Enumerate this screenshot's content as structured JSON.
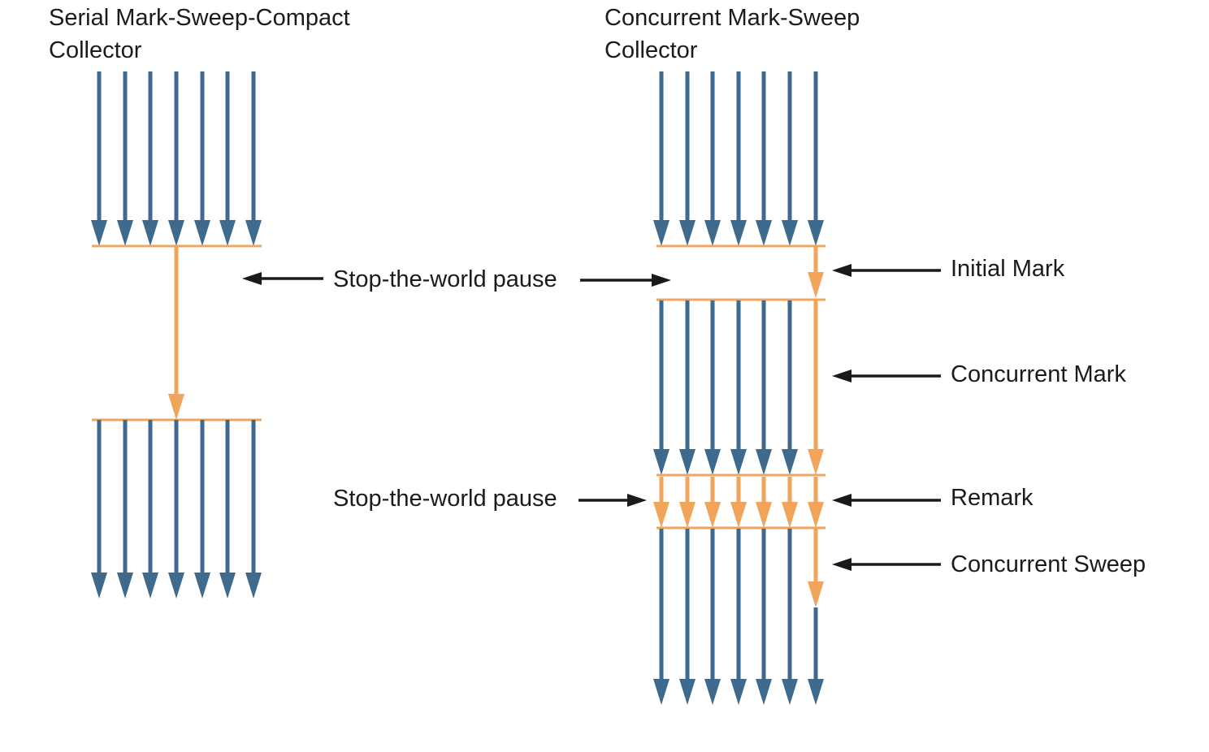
{
  "colors": {
    "app_thread": "#3e6a8e",
    "gc_thread": "#f0a45c",
    "pointer": "#1a1a1a",
    "text": "#1b1b1b"
  },
  "serial": {
    "title_line1": "Serial Mark-Sweep-Compact",
    "title_line2": "Collector"
  },
  "concurrent": {
    "title_line1": "Concurrent Mark-Sweep",
    "title_line2": "Collector"
  },
  "labels": {
    "stop_the_world_1": "Stop-the-world pause",
    "stop_the_world_2": "Stop-the-world pause",
    "initial_mark": "Initial Mark",
    "concurrent_mark": "Concurrent Mark",
    "remark": "Remark",
    "concurrent_sweep": "Concurrent Sweep"
  }
}
